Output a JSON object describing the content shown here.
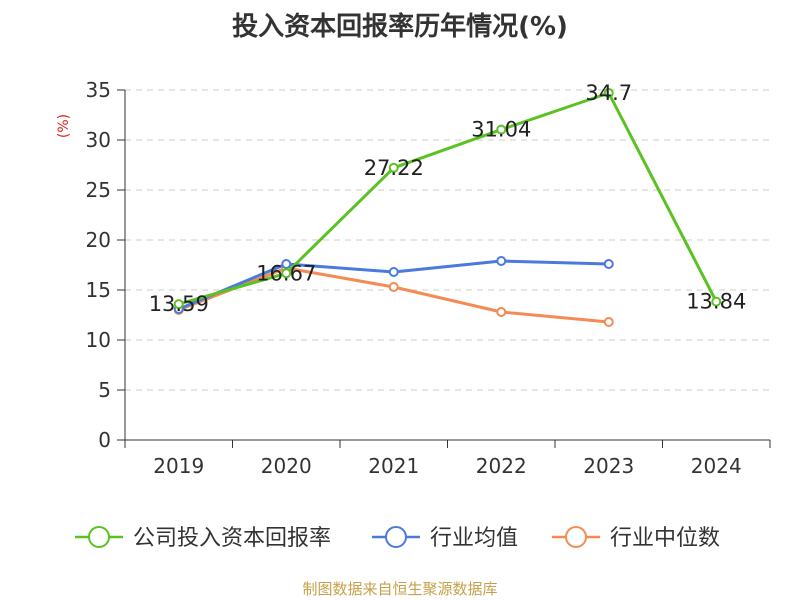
{
  "chart_data": {
    "type": "line",
    "title": "投入资本回报率历年情况(%)",
    "ylabel": "(%)",
    "xlabel": "",
    "ylim": [
      0,
      35
    ],
    "yticks": [
      0,
      5,
      10,
      15,
      20,
      25,
      30,
      35
    ],
    "categories": [
      "2019",
      "2020",
      "2021",
      "2022",
      "2023",
      "2024"
    ],
    "series": [
      {
        "name": "公司投入资本回报率",
        "color": "#5bc223",
        "values": [
          13.59,
          16.67,
          27.22,
          31.04,
          34.7,
          13.84
        ],
        "labels": [
          "13.59",
          "16.67",
          "27.22",
          "31.04",
          "34.7",
          "13.84"
        ]
      },
      {
        "name": "行业均值",
        "color": "#4a7bdc",
        "values": [
          13.1,
          17.6,
          16.8,
          17.9,
          17.6,
          null
        ],
        "labels": null
      },
      {
        "name": "行业中位数",
        "color": "#f58a54",
        "values": [
          13.0,
          17.2,
          15.3,
          12.8,
          11.8,
          null
        ],
        "labels": null
      }
    ],
    "grid": true,
    "legend": "bottom"
  },
  "source_note": "制图数据来自恒生聚源数据库",
  "colors": {
    "axis": "#333333",
    "grid": "#cccccc",
    "ylabel": "#e0221c",
    "source": "#c8a049"
  }
}
